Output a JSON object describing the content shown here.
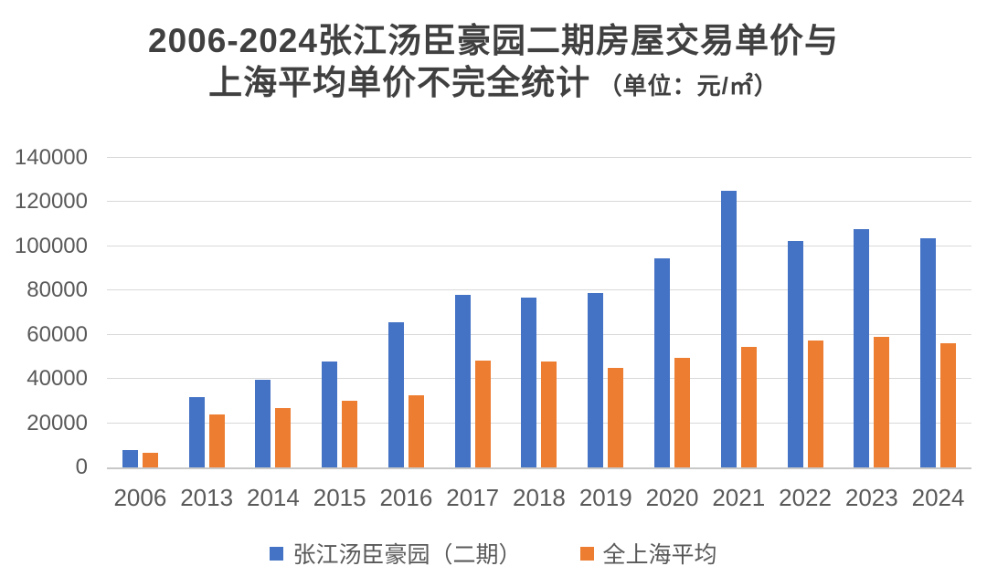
{
  "chart_data": {
    "type": "bar",
    "title": "2006-2024张江汤臣豪园二期房屋交易单价与上海平均单价不完全统计（单位：元/㎡）",
    "title_line1": "2006-2024张江汤臣豪园二期房屋交易单价与",
    "title_line2": "上海平均单价不完全统计",
    "unit_label": "（单位：元/㎡）",
    "categories": [
      "2006",
      "2013",
      "2014",
      "2015",
      "2016",
      "2017",
      "2018",
      "2019",
      "2020",
      "2021",
      "2022",
      "2023",
      "2024"
    ],
    "series": [
      {
        "key": "zhangjiang-tangchen-phase2",
        "name": "张江汤臣豪园（二期）",
        "color": "#4472C4",
        "values": [
          8000,
          32000,
          39500,
          48000,
          65500,
          78000,
          77000,
          79000,
          94500,
          125000,
          102500,
          108000,
          103500
        ]
      },
      {
        "key": "shanghai-average",
        "name": "全上海平均",
        "color": "#ED7D31",
        "values": [
          6500,
          24000,
          27000,
          30000,
          32500,
          48500,
          48000,
          45000,
          49500,
          54500,
          57500,
          59000,
          56000
        ]
      }
    ],
    "xlabel": "",
    "ylabel": "",
    "ylim": [
      0,
      140000
    ],
    "yticks": [
      0,
      20000,
      40000,
      60000,
      80000,
      100000,
      120000,
      140000
    ],
    "grid": true,
    "legend_position": "bottom",
    "colors": {
      "background": "#FFFFFF",
      "gridline": "#D9D9D9",
      "axis_line": "#C8C8C8",
      "tick_text": "#595959",
      "title_text": "#404040"
    }
  }
}
